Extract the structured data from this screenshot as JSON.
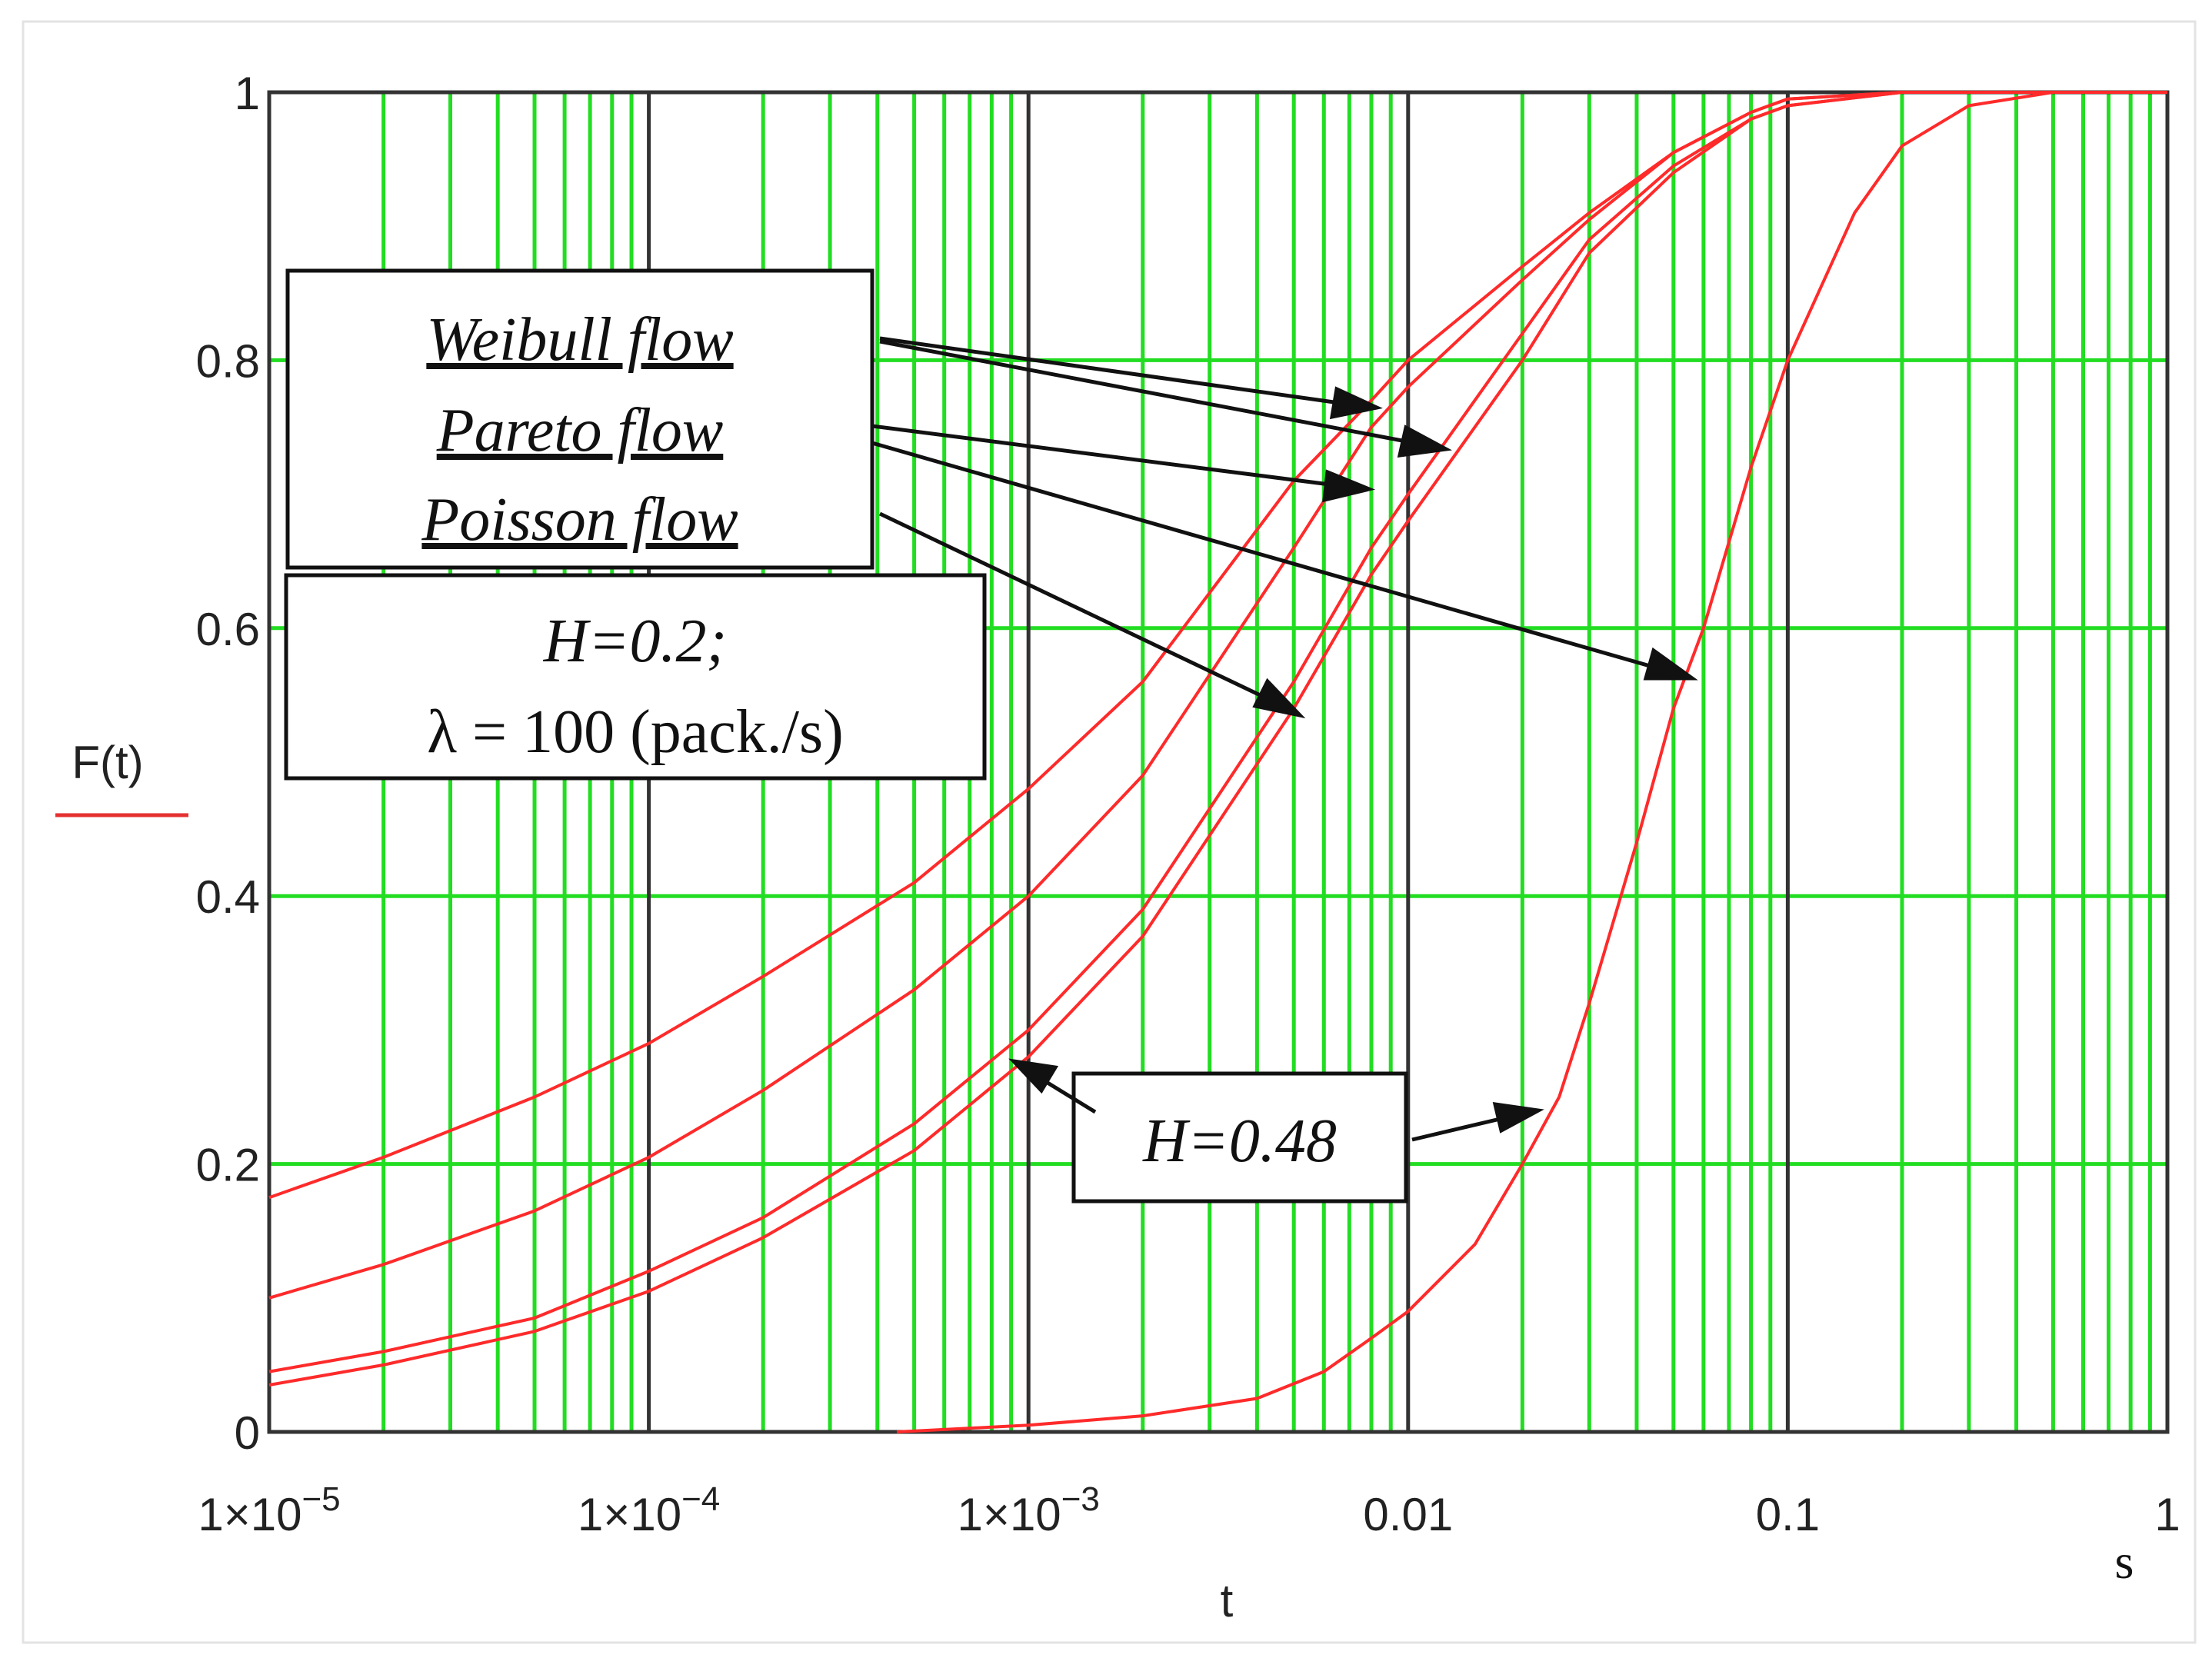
{
  "chart_data": {
    "type": "line",
    "title": "",
    "xlabel": "t",
    "ylabel": "F(t)",
    "x_unit": "s",
    "x_scale": "log",
    "xlim": [
      1e-05,
      1
    ],
    "ylim": [
      0,
      1
    ],
    "grid": true,
    "x_ticks": [
      1e-05,
      0.0001,
      0.001,
      0.01,
      0.1,
      1
    ],
    "x_tick_labels": [
      {
        "mant": "1×10",
        "exp": "−5"
      },
      {
        "mant": "1×10",
        "exp": "−4"
      },
      {
        "mant": "1×10",
        "exp": "−3"
      },
      {
        "mant": "0.01",
        "exp": ""
      },
      {
        "mant": "0.1",
        "exp": ""
      },
      {
        "mant": "1",
        "exp": ""
      }
    ],
    "y_ticks": [
      0,
      0.2,
      0.4,
      0.6,
      0.8,
      1
    ],
    "y_tick_labels": [
      "0",
      "0.2",
      "0.4",
      "0.6",
      "0.8",
      "1"
    ],
    "series": [
      {
        "points": [
          [
            1e-05,
            0.175
          ],
          [
            2e-05,
            0.205
          ],
          [
            5e-05,
            0.25
          ],
          [
            0.0001,
            0.29
          ],
          [
            0.0002,
            0.34
          ],
          [
            0.0005,
            0.41
          ],
          [
            0.001,
            0.48
          ],
          [
            0.002,
            0.56
          ],
          [
            0.005,
            0.71
          ],
          [
            0.008,
            0.77
          ],
          [
            0.01,
            0.8
          ],
          [
            0.02,
            0.87
          ],
          [
            0.03,
            0.91
          ],
          [
            0.05,
            0.955
          ],
          [
            0.08,
            0.985
          ],
          [
            0.1,
            0.995
          ],
          [
            0.2,
            1.0
          ],
          [
            1,
            1.0
          ]
        ]
      },
      {
        "points": [
          [
            1e-05,
            0.1
          ],
          [
            2e-05,
            0.125
          ],
          [
            5e-05,
            0.165
          ],
          [
            0.0001,
            0.205
          ],
          [
            0.0002,
            0.255
          ],
          [
            0.0005,
            0.33
          ],
          [
            0.001,
            0.4
          ],
          [
            0.002,
            0.49
          ],
          [
            0.005,
            0.66
          ],
          [
            0.008,
            0.75
          ],
          [
            0.01,
            0.78
          ],
          [
            0.02,
            0.86
          ],
          [
            0.03,
            0.905
          ],
          [
            0.05,
            0.955
          ],
          [
            0.08,
            0.985
          ],
          [
            0.1,
            0.995
          ],
          [
            0.2,
            1.0
          ],
          [
            1,
            1.0
          ]
        ]
      },
      {
        "points": [
          [
            1e-05,
            0.045
          ],
          [
            2e-05,
            0.06
          ],
          [
            5e-05,
            0.085
          ],
          [
            0.0001,
            0.12
          ],
          [
            0.0002,
            0.16
          ],
          [
            0.0005,
            0.23
          ],
          [
            0.001,
            0.3
          ],
          [
            0.002,
            0.39
          ],
          [
            0.005,
            0.56
          ],
          [
            0.008,
            0.66
          ],
          [
            0.01,
            0.7
          ],
          [
            0.02,
            0.82
          ],
          [
            0.03,
            0.89
          ],
          [
            0.05,
            0.945
          ],
          [
            0.08,
            0.98
          ],
          [
            0.1,
            0.99
          ],
          [
            0.2,
            1.0
          ],
          [
            1,
            1.0
          ]
        ]
      },
      {
        "points": [
          [
            1e-05,
            0.035
          ],
          [
            2e-05,
            0.05
          ],
          [
            5e-05,
            0.075
          ],
          [
            0.0001,
            0.105
          ],
          [
            0.0002,
            0.145
          ],
          [
            0.0005,
            0.21
          ],
          [
            0.001,
            0.28
          ],
          [
            0.002,
            0.37
          ],
          [
            0.005,
            0.54
          ],
          [
            0.008,
            0.64
          ],
          [
            0.01,
            0.68
          ],
          [
            0.02,
            0.8
          ],
          [
            0.03,
            0.88
          ],
          [
            0.05,
            0.94
          ],
          [
            0.08,
            0.98
          ],
          [
            0.1,
            0.99
          ],
          [
            0.2,
            1.0
          ],
          [
            1,
            1.0
          ]
        ]
      },
      {
        "points": [
          [
            0.00045,
            0.0
          ],
          [
            0.001,
            0.005
          ],
          [
            0.002,
            0.012
          ],
          [
            0.004,
            0.025
          ],
          [
            0.006,
            0.045
          ],
          [
            0.008,
            0.07
          ],
          [
            0.01,
            0.09
          ],
          [
            0.015,
            0.14
          ],
          [
            0.02,
            0.2
          ],
          [
            0.025,
            0.25
          ],
          [
            0.03,
            0.32
          ],
          [
            0.04,
            0.44
          ],
          [
            0.05,
            0.54
          ],
          [
            0.06,
            0.6
          ],
          [
            0.08,
            0.72
          ],
          [
            0.1,
            0.8
          ],
          [
            0.15,
            0.91
          ],
          [
            0.2,
            0.96
          ],
          [
            0.3,
            0.99
          ],
          [
            0.5,
            1.0
          ],
          [
            1,
            1.0
          ]
        ]
      }
    ],
    "annotations": {
      "legend_lines": [
        "Weibull flow",
        "Pareto flow",
        "Poisson flow"
      ],
      "params": [
        "H=0.2;",
        "λ = 100 (pack./s)"
      ],
      "h2": "H=0.48"
    }
  }
}
